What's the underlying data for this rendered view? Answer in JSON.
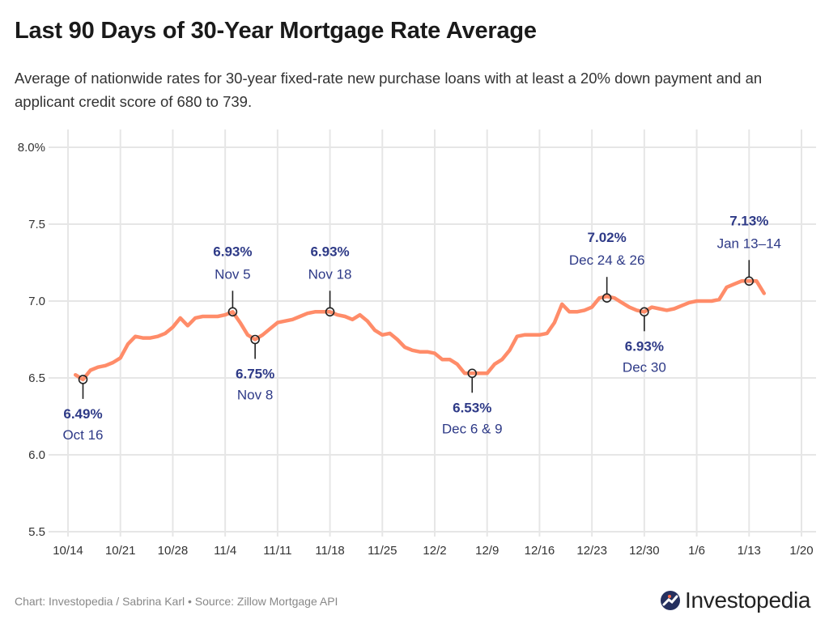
{
  "header": {
    "title": "Last 90 Days of 30-Year Mortgage Rate Average",
    "subtitle": "Average of nationwide rates for 30-year fixed-rate new purchase loans with at least a 20% down payment and an applicant credit score of 680 to 739."
  },
  "footer": {
    "credit": "Chart: Investopedia / Sabrina Karl • Source: Zillow Mortgage API",
    "logo_text": "Investopedia"
  },
  "colors": {
    "line": "#ff8c69",
    "annotation": "#2e3a87",
    "grid": "#e6e6e6",
    "logo": "#25305f"
  },
  "chart_data": {
    "type": "line",
    "title": "Last 90 Days of 30-Year Mortgage Rate Average",
    "xlabel": "",
    "ylabel": "",
    "grid": true,
    "legend": "none",
    "ylim": [
      5.5,
      8.0
    ],
    "y_ticks": [
      "8.0%",
      "7.5",
      "7.0",
      "6.5",
      "6.0",
      "5.5"
    ],
    "y_tick_values": [
      8.0,
      7.5,
      7.0,
      6.5,
      6.0,
      5.5
    ],
    "x_ticks": [
      "10/14",
      "10/21",
      "10/28",
      "11/4",
      "11/11",
      "11/18",
      "11/25",
      "12/2",
      "12/9",
      "12/16",
      "12/23",
      "12/30",
      "1/6",
      "1/13",
      "1/20"
    ],
    "x_range": [
      "10/14",
      "1/20"
    ],
    "series": [
      {
        "points": [
          [
            "10/15",
            6.52
          ],
          [
            "10/16",
            6.49
          ],
          [
            "10/17",
            6.55
          ],
          [
            "10/18",
            6.57
          ],
          [
            "10/19",
            6.58
          ],
          [
            "10/20",
            6.6
          ],
          [
            "10/21",
            6.63
          ],
          [
            "10/22",
            6.72
          ],
          [
            "10/23",
            6.77
          ],
          [
            "10/24",
            6.76
          ],
          [
            "10/25",
            6.76
          ],
          [
            "10/26",
            6.77
          ],
          [
            "10/27",
            6.79
          ],
          [
            "10/28",
            6.83
          ],
          [
            "10/29",
            6.89
          ],
          [
            "10/30",
            6.84
          ],
          [
            "10/31",
            6.89
          ],
          [
            "11/1",
            6.9
          ],
          [
            "11/2",
            6.9
          ],
          [
            "11/3",
            6.9
          ],
          [
            "11/4",
            6.91
          ],
          [
            "11/5",
            6.93
          ],
          [
            "11/6",
            6.86
          ],
          [
            "11/7",
            6.78
          ],
          [
            "11/8",
            6.75
          ],
          [
            "11/9",
            6.78
          ],
          [
            "11/10",
            6.82
          ],
          [
            "11/11",
            6.86
          ],
          [
            "11/12",
            6.87
          ],
          [
            "11/13",
            6.88
          ],
          [
            "11/14",
            6.9
          ],
          [
            "11/15",
            6.92
          ],
          [
            "11/16",
            6.93
          ],
          [
            "11/17",
            6.93
          ],
          [
            "11/18",
            6.93
          ],
          [
            "11/19",
            6.91
          ],
          [
            "11/20",
            6.9
          ],
          [
            "11/21",
            6.88
          ],
          [
            "11/22",
            6.91
          ],
          [
            "11/23",
            6.87
          ],
          [
            "11/24",
            6.81
          ],
          [
            "11/25",
            6.78
          ],
          [
            "11/26",
            6.79
          ],
          [
            "11/27",
            6.75
          ],
          [
            "11/28",
            6.7
          ],
          [
            "11/29",
            6.68
          ],
          [
            "11/30",
            6.67
          ],
          [
            "12/1",
            6.67
          ],
          [
            "12/2",
            6.66
          ],
          [
            "12/3",
            6.62
          ],
          [
            "12/4",
            6.62
          ],
          [
            "12/5",
            6.59
          ],
          [
            "12/6",
            6.53
          ],
          [
            "12/7",
            6.53
          ],
          [
            "12/8",
            6.53
          ],
          [
            "12/9",
            6.53
          ],
          [
            "12/10",
            6.59
          ],
          [
            "12/11",
            6.62
          ],
          [
            "12/12",
            6.68
          ],
          [
            "12/13",
            6.77
          ],
          [
            "12/14",
            6.78
          ],
          [
            "12/15",
            6.78
          ],
          [
            "12/16",
            6.78
          ],
          [
            "12/17",
            6.79
          ],
          [
            "12/18",
            6.86
          ],
          [
            "12/19",
            6.98
          ],
          [
            "12/20",
            6.93
          ],
          [
            "12/21",
            6.93
          ],
          [
            "12/22",
            6.94
          ],
          [
            "12/23",
            6.96
          ],
          [
            "12/24",
            7.02
          ],
          [
            "12/25",
            7.03
          ],
          [
            "12/26",
            7.02
          ],
          [
            "12/27",
            6.99
          ],
          [
            "12/28",
            6.96
          ],
          [
            "12/29",
            6.94
          ],
          [
            "12/30",
            6.93
          ],
          [
            "12/31",
            6.96
          ],
          [
            "1/1",
            6.95
          ],
          [
            "1/2",
            6.94
          ],
          [
            "1/3",
            6.95
          ],
          [
            "1/4",
            6.97
          ],
          [
            "1/5",
            6.99
          ],
          [
            "1/6",
            7.0
          ],
          [
            "1/7",
            7.0
          ],
          [
            "1/8",
            7.0
          ],
          [
            "1/9",
            7.01
          ],
          [
            "1/10",
            7.09
          ],
          [
            "1/11",
            7.11
          ],
          [
            "1/12",
            7.13
          ],
          [
            "1/13",
            7.13
          ],
          [
            "1/14",
            7.13
          ],
          [
            "1/15",
            7.05
          ]
        ]
      }
    ],
    "annotations": [
      {
        "value_label": "6.49%",
        "date_label": "Oct 16",
        "at": "10/16",
        "value": 6.49,
        "position": "below"
      },
      {
        "value_label": "6.93%",
        "date_label": "Nov 5",
        "at": "11/5",
        "value": 6.93,
        "position": "above"
      },
      {
        "value_label": "6.75%",
        "date_label": "Nov 8",
        "at": "11/8",
        "value": 6.75,
        "position": "below"
      },
      {
        "value_label": "6.93%",
        "date_label": "Nov 18",
        "at": "11/18",
        "value": 6.93,
        "position": "above"
      },
      {
        "value_label": "6.53%",
        "date_label": "Dec 6 & 9",
        "at": "12/7",
        "value": 6.53,
        "position": "below"
      },
      {
        "value_label": "7.02%",
        "date_label": "Dec 24 & 26",
        "at": "12/25",
        "value": 7.02,
        "position": "above"
      },
      {
        "value_label": "6.93%",
        "date_label": "Dec 30",
        "at": "12/30",
        "value": 6.93,
        "position": "below"
      },
      {
        "value_label": "7.13%",
        "date_label": "Jan 13–14",
        "at": "1/13",
        "value": 7.13,
        "position": "above"
      }
    ]
  }
}
